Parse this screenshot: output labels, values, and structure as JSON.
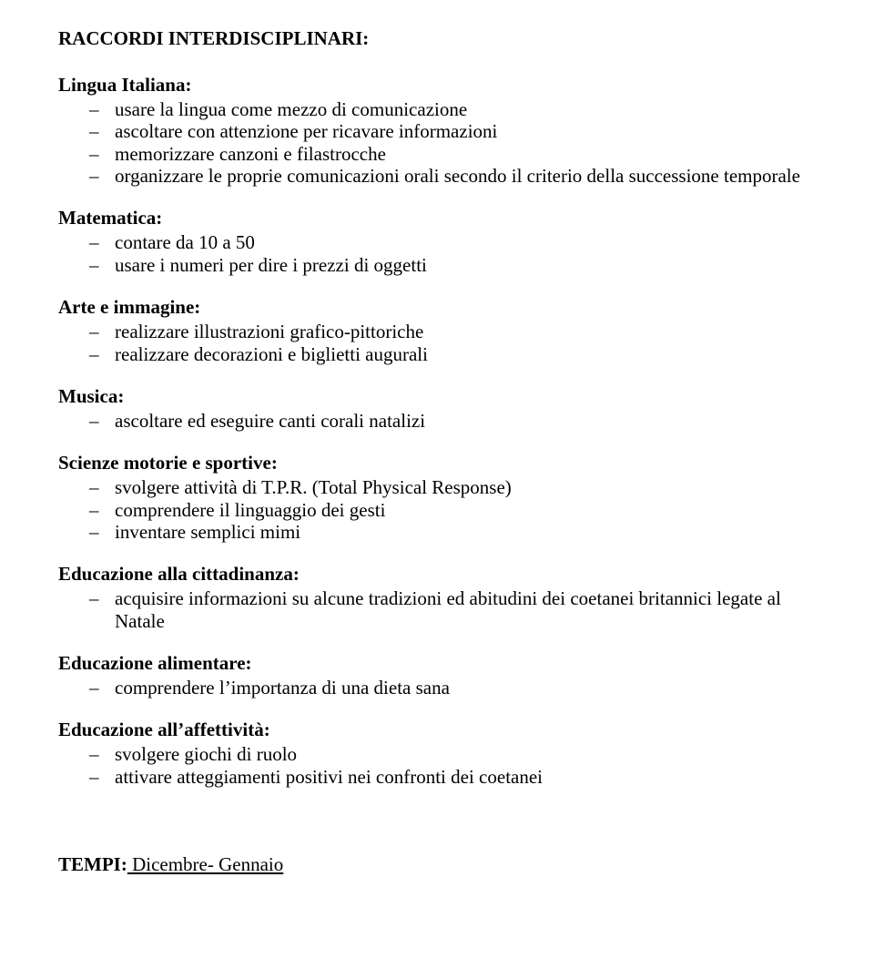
{
  "title": "RACCORDI INTERDISCIPLINARI:",
  "sections": [
    {
      "heading": "Lingua Italiana:",
      "items": [
        "usare la lingua come mezzo di comunicazione",
        "ascoltare con attenzione per ricavare informazioni",
        "memorizzare canzoni e filastrocche",
        "organizzare le proprie comunicazioni orali secondo il criterio della successione temporale"
      ]
    },
    {
      "heading": "Matematica:",
      "items": [
        "contare da 10 a 50",
        "usare i numeri per dire i prezzi di oggetti"
      ]
    },
    {
      "heading": "Arte e immagine:",
      "items": [
        "realizzare illustrazioni grafico-pittoriche",
        "realizzare decorazioni e biglietti augurali"
      ]
    },
    {
      "heading": "Musica:",
      "items": [
        "ascoltare ed eseguire canti corali natalizi"
      ]
    },
    {
      "heading": "Scienze motorie e sportive:",
      "items": [
        "svolgere attività di T.P.R. (Total Physical Response)",
        "comprendere il linguaggio dei gesti",
        "inventare semplici mimi"
      ]
    },
    {
      "heading": "Educazione alla cittadinanza:",
      "items": [
        "acquisire informazioni su alcune tradizioni ed abitudini dei coetanei britannici legate al Natale"
      ]
    },
    {
      "heading": "Educazione alimentare:",
      "items": [
        "comprendere l’importanza di una dieta sana"
      ]
    },
    {
      "heading": "Educazione all’affettività:",
      "items": [
        "svolgere giochi di ruolo",
        "attivare atteggiamenti positivi nei confronti dei coetanei"
      ]
    }
  ],
  "tempi": {
    "label": "TEMPI:",
    "value": " Dicembre- Gennaio"
  }
}
